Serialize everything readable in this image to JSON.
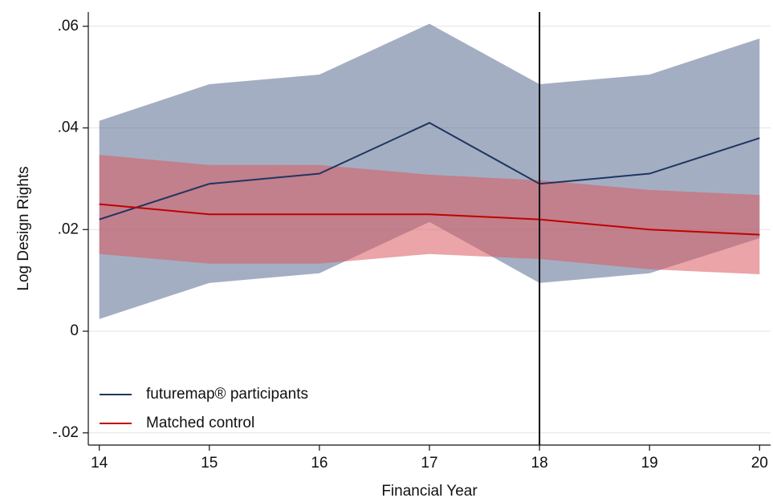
{
  "chart_data": {
    "type": "line",
    "x_label": "Financial Year",
    "y_label": "Log Design Rights",
    "x": [
      14,
      15,
      16,
      17,
      18,
      19,
      20
    ],
    "series": [
      {
        "name": "futuremap® participants",
        "color": "#1f3560",
        "band_color": "#5a6c92",
        "values": [
          0.022,
          0.029,
          0.031,
          0.041,
          0.029,
          0.031,
          0.038
        ],
        "upper": [
          0.0414,
          0.0486,
          0.0505,
          0.0605,
          0.0486,
          0.0505,
          0.0576
        ],
        "lower": [
          0.0024,
          0.0095,
          0.0114,
          0.0215,
          0.0095,
          0.0114,
          0.0183
        ]
      },
      {
        "name": "Matched control",
        "color": "#c00000",
        "band_color": "#db5a5f",
        "values": [
          0.025,
          0.023,
          0.023,
          0.023,
          0.022,
          0.02,
          0.019
        ],
        "upper": [
          0.0347,
          0.0327,
          0.0327,
          0.0308,
          0.0297,
          0.0278,
          0.0268
        ],
        "lower": [
          0.0152,
          0.0133,
          0.0133,
          0.0152,
          0.0142,
          0.0122,
          0.0112
        ]
      }
    ],
    "vline": 18,
    "xlim": [
      13.9,
      20.1
    ],
    "xticks": [
      14,
      15,
      16,
      17,
      18,
      19,
      20
    ],
    "ylim": [
      -0.0224,
      0.0628
    ],
    "yticks": [
      {
        "value": -0.02,
        "label": "-.02"
      },
      0,
      {
        "value": 0.02,
        "label": ".02"
      },
      {
        "value": 0.04,
        "label": ".04"
      },
      {
        "value": 0.06,
        "label": ".06"
      }
    ],
    "grid": true,
    "legend": "lower left"
  }
}
